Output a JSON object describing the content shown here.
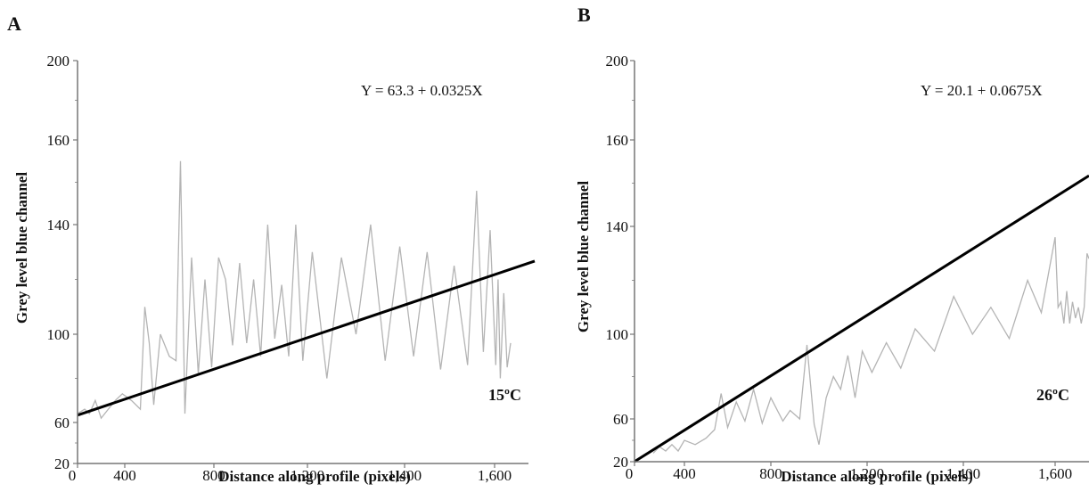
{
  "chart_data": [
    {
      "type": "line",
      "panel_label": "A",
      "xlabel": "Distance along profile (pixels)",
      "ylabel": "Grey level blue channel",
      "x_tick_labels": [
        "0",
        "400",
        "800",
        "1,200",
        "1,400",
        "1,600"
      ],
      "y_tick_labels": [
        "20",
        "60",
        "100",
        "140",
        "160",
        "200"
      ],
      "equation": "Y = 63.3 + 0.0325X",
      "temperature": "15ºC",
      "series": [
        {
          "role": "profile",
          "color": "#b4b4b4",
          "points": [
            [
              0,
              64
            ],
            [
              60,
              66
            ],
            [
              100,
              64
            ],
            [
              150,
              70
            ],
            [
              200,
              62
            ],
            [
              260,
              66
            ],
            [
              320,
              70
            ],
            [
              380,
              73
            ],
            [
              430,
              70
            ],
            [
              470,
              66
            ],
            [
              490,
              110
            ],
            [
              510,
              96
            ],
            [
              530,
              68
            ],
            [
              560,
              100
            ],
            [
              600,
              90
            ],
            [
              630,
              88
            ],
            [
              650,
              155
            ],
            [
              670,
              64
            ],
            [
              700,
              128
            ],
            [
              730,
              82
            ],
            [
              760,
              120
            ],
            [
              790,
              85
            ],
            [
              820,
              128
            ],
            [
              850,
              120
            ],
            [
              880,
              95
            ],
            [
              910,
              126
            ],
            [
              940,
              96
            ],
            [
              970,
              120
            ],
            [
              1000,
              90
            ],
            [
              1030,
              140
            ],
            [
              1060,
              98
            ],
            [
              1090,
              118
            ],
            [
              1120,
              90
            ],
            [
              1150,
              140
            ],
            [
              1180,
              88
            ],
            [
              1210,
              130
            ],
            [
              1240,
              80
            ],
            [
              1270,
              128
            ],
            [
              1300,
              100
            ],
            [
              1330,
              140
            ],
            [
              1360,
              88
            ],
            [
              1390,
              132
            ],
            [
              1420,
              90
            ],
            [
              1450,
              130
            ],
            [
              1480,
              84
            ],
            [
              1510,
              125
            ],
            [
              1540,
              86
            ],
            [
              1560,
              148
            ],
            [
              1575,
              92
            ],
            [
              1590,
              138
            ],
            [
              1610,
              86
            ],
            [
              1630,
              120
            ],
            [
              1650,
              80
            ],
            [
              1680,
              115
            ],
            [
              1710,
              85
            ],
            [
              1740,
              96
            ]
          ]
        },
        {
          "role": "regression",
          "color": "#000000",
          "intercept": 63.3,
          "slope": 0.0325,
          "x_range": [
            0,
            1950
          ]
        }
      ],
      "xlim": [
        0,
        1950
      ],
      "ylim": [
        20,
        200
      ]
    },
    {
      "type": "line",
      "panel_label": "B",
      "xlabel": "Distance along profile (pixels)",
      "ylabel": "Grey level blue channel",
      "x_tick_labels": [
        "0",
        "400",
        "800",
        "1,200",
        "1,400",
        "1,600"
      ],
      "y_tick_labels": [
        "20",
        "60",
        "100",
        "140",
        "160",
        "200"
      ],
      "equation": "Y = 20.1 + 0.0675X",
      "temperature": "26ºC",
      "series": [
        {
          "role": "profile",
          "color": "#b4b4b4",
          "points": [
            [
              150,
              28
            ],
            [
              200,
              34
            ],
            [
              250,
              30
            ],
            [
              300,
              36
            ],
            [
              350,
              30
            ],
            [
              400,
              40
            ],
            [
              450,
              36
            ],
            [
              500,
              42
            ],
            [
              540,
              50
            ],
            [
              570,
              72
            ],
            [
              600,
              52
            ],
            [
              640,
              68
            ],
            [
              680,
              58
            ],
            [
              720,
              74
            ],
            [
              760,
              56
            ],
            [
              800,
              70
            ],
            [
              850,
              58
            ],
            [
              880,
              64
            ],
            [
              920,
              60
            ],
            [
              950,
              95
            ],
            [
              980,
              55
            ],
            [
              1000,
              36
            ],
            [
              1030,
              70
            ],
            [
              1060,
              80
            ],
            [
              1090,
              74
            ],
            [
              1120,
              90
            ],
            [
              1150,
              70
            ],
            [
              1180,
              92
            ],
            [
              1210,
              82
            ],
            [
              1240,
              96
            ],
            [
              1270,
              84
            ],
            [
              1300,
              102
            ],
            [
              1340,
              92
            ],
            [
              1380,
              114
            ],
            [
              1420,
              100
            ],
            [
              1460,
              110
            ],
            [
              1500,
              98
            ],
            [
              1540,
              120
            ],
            [
              1570,
              108
            ],
            [
              1600,
              136
            ],
            [
              1630,
              110
            ],
            [
              1660,
              112
            ],
            [
              1690,
              104
            ],
            [
              1720,
              116
            ],
            [
              1750,
              104
            ],
            [
              1780,
              112
            ],
            [
              1810,
              106
            ],
            [
              1840,
              110
            ],
            [
              1870,
              104
            ],
            [
              1900,
              110
            ],
            [
              1930,
              130
            ],
            [
              1950,
              128
            ]
          ]
        },
        {
          "role": "regression",
          "color": "#000000",
          "intercept": 20.1,
          "slope": 0.0675,
          "x_range": [
            0,
            1950
          ]
        }
      ],
      "xlim": [
        0,
        1950
      ],
      "ylim": [
        20,
        200
      ]
    }
  ]
}
